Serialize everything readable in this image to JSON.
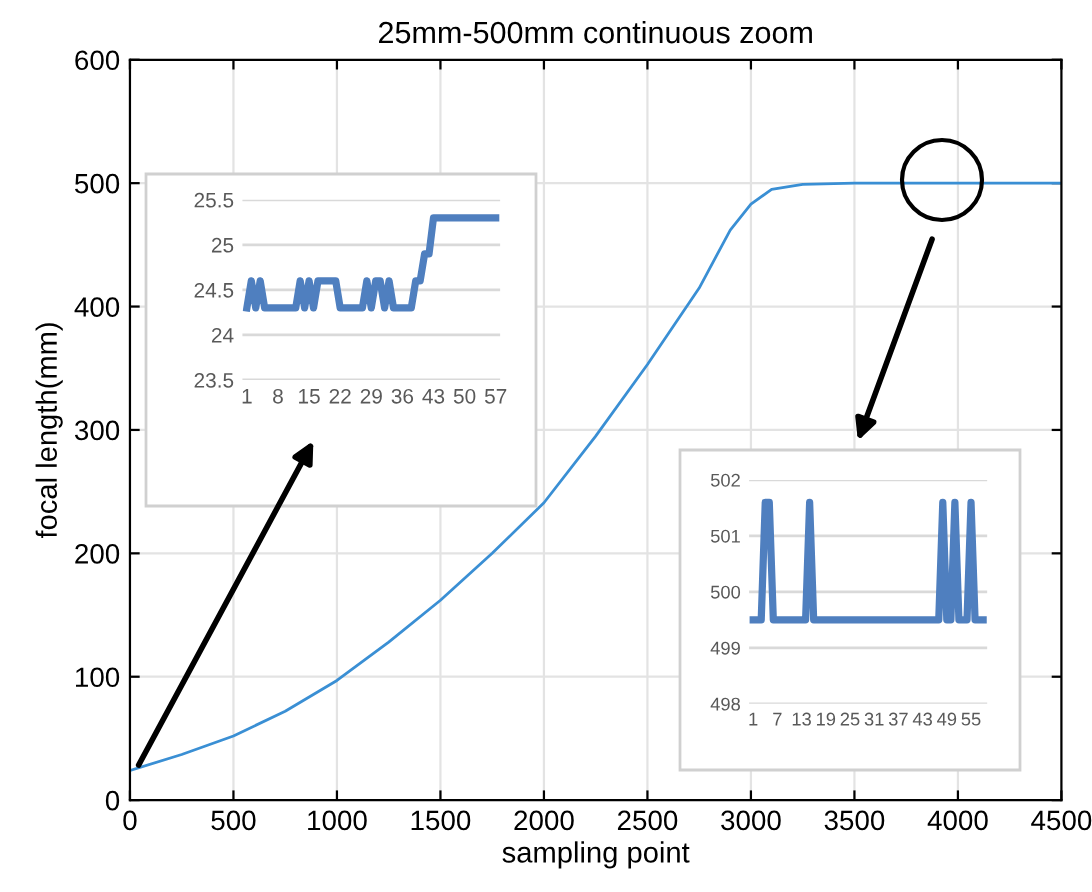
{
  "chart_data": [
    {
      "type": "line",
      "title": "25mm-500mm continuous zoom",
      "xlabel": "sampling point",
      "ylabel": "focal length(mm)",
      "series": [
        {
          "color": "#3a8fd4",
          "x": [
            0,
            250,
            500,
            750,
            1000,
            1250,
            1500,
            1750,
            2000,
            2250,
            2500,
            2750,
            2900,
            3000,
            3100,
            3250,
            3500,
            4000,
            4500
          ],
          "values": [
            24,
            37,
            52,
            72,
            97,
            128,
            162,
            200,
            241,
            295,
            353,
            415,
            462,
            483,
            495,
            499,
            500,
            500,
            500
          ]
        }
      ],
      "xlim": [
        0,
        4500
      ],
      "ylim": [
        0,
        600
      ],
      "xticks": [
        0,
        500,
        1000,
        1500,
        2000,
        2500,
        3000,
        3500,
        4000,
        4500
      ],
      "yticks": [
        0,
        100,
        200,
        300,
        400,
        500,
        600
      ],
      "grid": true
    },
    {
      "type": "line",
      "categories": [
        "1",
        null,
        null,
        null,
        null,
        null,
        null,
        "8",
        null,
        null,
        null,
        null,
        null,
        null,
        "15",
        null,
        null,
        null,
        null,
        null,
        null,
        "22",
        null,
        null,
        null,
        null,
        null,
        null,
        "29",
        null,
        null,
        null,
        null,
        null,
        null,
        "36",
        null,
        null,
        null,
        null,
        null,
        null,
        "43",
        null,
        null,
        null,
        null,
        null,
        null,
        "50",
        null,
        null,
        null,
        null,
        null,
        null,
        "57"
      ],
      "series": [
        {
          "color": "#4f7fbf",
          "values": [
            24.3,
            24.6,
            24.3,
            24.6,
            24.3,
            24.3,
            24.3,
            24.3,
            24.3,
            24.3,
            24.3,
            24.3,
            24.6,
            24.3,
            24.6,
            24.3,
            24.6,
            24.6,
            24.6,
            24.6,
            24.6,
            24.3,
            24.3,
            24.3,
            24.3,
            24.3,
            24.3,
            24.6,
            24.3,
            24.6,
            24.6,
            24.3,
            24.6,
            24.3,
            24.3,
            24.3,
            24.3,
            24.3,
            24.6,
            24.6,
            24.9,
            24.9,
            25.3,
            25.3,
            25.3,
            25.3,
            25.3,
            25.3,
            25.3,
            25.3,
            25.3,
            25.3,
            25.3,
            25.3,
            25.3,
            25.3,
            25.3
          ]
        }
      ],
      "ylim": [
        23.5,
        25.5
      ],
      "yticks": [
        23.5,
        24,
        24.5,
        25,
        25.5
      ],
      "grid": "y"
    },
    {
      "type": "line",
      "categories": [
        "1",
        null,
        null,
        null,
        null,
        null,
        "7",
        null,
        null,
        null,
        null,
        null,
        "13",
        null,
        null,
        null,
        null,
        null,
        "19",
        null,
        null,
        null,
        null,
        null,
        "25",
        null,
        null,
        null,
        null,
        null,
        "31",
        null,
        null,
        null,
        null,
        null,
        "37",
        null,
        null,
        null,
        null,
        null,
        "43",
        null,
        null,
        null,
        null,
        null,
        "49",
        null,
        null,
        null,
        null,
        null,
        "55",
        null,
        null,
        null
      ],
      "series": [
        {
          "color": "#4f7fbf",
          "values": [
            499.5,
            499.5,
            499.5,
            501.6,
            501.6,
            499.5,
            499.5,
            499.5,
            499.5,
            499.5,
            499.5,
            499.5,
            499.5,
            499.5,
            501.6,
            499.5,
            499.5,
            499.5,
            499.5,
            499.5,
            499.5,
            499.5,
            499.5,
            499.5,
            499.5,
            499.5,
            499.5,
            499.5,
            499.5,
            499.5,
            499.5,
            499.5,
            499.5,
            499.5,
            499.5,
            499.5,
            499.5,
            499.5,
            499.5,
            499.5,
            499.5,
            499.5,
            499.5,
            499.5,
            499.5,
            499.5,
            499.5,
            501.6,
            499.5,
            499.5,
            501.6,
            499.5,
            499.5,
            499.5,
            501.6,
            499.5,
            499.5,
            499.5
          ]
        }
      ],
      "ylim": [
        498,
        502
      ],
      "yticks": [
        498,
        499,
        500,
        501,
        502
      ],
      "grid": "y"
    }
  ]
}
